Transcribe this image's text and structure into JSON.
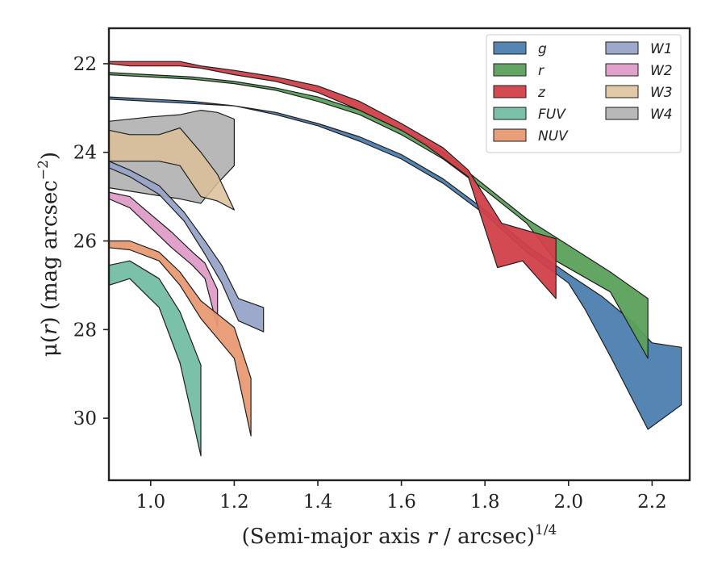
{
  "chart_data": {
    "type": "area",
    "xlabel": "(Semi-major axis r / arcsec)^1/4",
    "xlabel_parts": {
      "pre": "(Semi-major axis ",
      "var": "r",
      "mid": " / arcsec)",
      "sup": "1/4"
    },
    "ylabel": "μ(r) (mag arcsec⁻²)",
    "ylabel_parts": {
      "pre": "μ(",
      "var": "r",
      "mid": ") (mag arcsec",
      "sup": "−2",
      "post": ")"
    },
    "xlim": [
      0.9,
      2.29
    ],
    "ylim": [
      31.4,
      21.2
    ],
    "y_inverted": true,
    "xticks": [
      1.0,
      1.2,
      1.4,
      1.6,
      1.8,
      2.0,
      2.2
    ],
    "xtick_labels": [
      "1.0",
      "1.2",
      "1.4",
      "1.6",
      "1.8",
      "2.0",
      "2.2"
    ],
    "yticks": [
      22,
      24,
      26,
      28,
      30
    ],
    "ytick_labels": [
      "22",
      "24",
      "26",
      "28",
      "30"
    ],
    "grid": false,
    "legend": {
      "position": "top-right",
      "columns": 2
    },
    "series": [
      {
        "name": "W4",
        "color": "#ababab",
        "alpha": 0.85,
        "upper": [
          [
            0.9,
            23.3
          ],
          [
            1.0,
            23.2
          ],
          [
            1.07,
            23.15
          ],
          [
            1.12,
            23.05
          ],
          [
            1.16,
            23.1
          ],
          [
            1.2,
            23.25
          ]
        ],
        "lower": [
          [
            0.9,
            24.8
          ],
          [
            1.0,
            24.95
          ],
          [
            1.07,
            25.05
          ],
          [
            1.12,
            25.15
          ],
          [
            1.16,
            24.7
          ],
          [
            1.2,
            24.3
          ]
        ]
      },
      {
        "name": "W3",
        "color": "#dcbf98",
        "alpha": 0.85,
        "upper": [
          [
            0.9,
            23.5
          ],
          [
            0.95,
            23.6
          ],
          [
            1.02,
            23.6
          ],
          [
            1.07,
            23.45
          ],
          [
            1.12,
            24.0
          ],
          [
            1.16,
            24.5
          ],
          [
            1.2,
            25.3
          ]
        ],
        "lower": [
          [
            0.9,
            24.2
          ],
          [
            0.95,
            24.2
          ],
          [
            1.02,
            24.2
          ],
          [
            1.07,
            24.3
          ],
          [
            1.12,
            25.0
          ],
          [
            1.16,
            25.1
          ],
          [
            1.2,
            25.3
          ]
        ]
      },
      {
        "name": "W1",
        "color": "#97a4c8",
        "alpha": 0.95,
        "upper": [
          [
            0.9,
            24.2
          ],
          [
            0.95,
            24.4
          ],
          [
            1.02,
            24.75
          ],
          [
            1.08,
            25.35
          ],
          [
            1.13,
            26.0
          ],
          [
            1.17,
            26.55
          ],
          [
            1.21,
            27.3
          ],
          [
            1.27,
            27.5
          ]
        ],
        "lower": [
          [
            0.9,
            24.35
          ],
          [
            0.95,
            24.55
          ],
          [
            1.02,
            24.95
          ],
          [
            1.08,
            25.55
          ],
          [
            1.13,
            26.3
          ],
          [
            1.17,
            26.95
          ],
          [
            1.21,
            27.8
          ],
          [
            1.27,
            28.05
          ]
        ]
      },
      {
        "name": "W2",
        "color": "#de9cc8",
        "alpha": 0.95,
        "upper": [
          [
            0.9,
            24.9
          ],
          [
            0.95,
            25.0
          ],
          [
            1.0,
            25.4
          ],
          [
            1.05,
            25.8
          ],
          [
            1.1,
            26.25
          ],
          [
            1.13,
            26.5
          ],
          [
            1.16,
            27.1
          ]
        ],
        "lower": [
          [
            0.9,
            25.05
          ],
          [
            0.95,
            25.25
          ],
          [
            1.0,
            25.7
          ],
          [
            1.05,
            26.15
          ],
          [
            1.1,
            26.55
          ],
          [
            1.13,
            26.85
          ],
          [
            1.16,
            27.95
          ]
        ]
      },
      {
        "name": "NUV",
        "color": "#e89a72",
        "alpha": 0.95,
        "upper": [
          [
            0.9,
            26.0
          ],
          [
            0.95,
            26.0
          ],
          [
            1.02,
            26.25
          ],
          [
            1.07,
            26.7
          ],
          [
            1.12,
            27.35
          ],
          [
            1.2,
            27.95
          ],
          [
            1.24,
            29.1
          ]
        ],
        "lower": [
          [
            0.9,
            26.15
          ],
          [
            0.95,
            26.2
          ],
          [
            1.02,
            26.45
          ],
          [
            1.07,
            27.0
          ],
          [
            1.12,
            27.75
          ],
          [
            1.2,
            28.65
          ],
          [
            1.24,
            30.4
          ]
        ]
      },
      {
        "name": "FUV",
        "color": "#74bda3",
        "alpha": 0.95,
        "upper": [
          [
            0.9,
            26.55
          ],
          [
            0.95,
            26.45
          ],
          [
            1.02,
            26.85
          ],
          [
            1.07,
            27.6
          ],
          [
            1.12,
            28.8
          ]
        ],
        "lower": [
          [
            0.9,
            27.0
          ],
          [
            0.95,
            26.85
          ],
          [
            1.02,
            27.5
          ],
          [
            1.07,
            28.75
          ],
          [
            1.12,
            30.85
          ]
        ]
      },
      {
        "name": "g",
        "color": "#4c7eaf",
        "alpha": 0.95,
        "upper": [
          [
            0.9,
            22.75
          ],
          [
            1.0,
            22.8
          ],
          [
            1.1,
            22.85
          ],
          [
            1.2,
            22.95
          ],
          [
            1.3,
            23.1
          ],
          [
            1.4,
            23.35
          ],
          [
            1.5,
            23.65
          ],
          [
            1.6,
            24.05
          ],
          [
            1.7,
            24.6
          ],
          [
            1.8,
            25.3
          ],
          [
            1.9,
            26.1
          ],
          [
            2.0,
            26.75
          ],
          [
            2.08,
            27.25
          ],
          [
            2.15,
            27.8
          ],
          [
            2.2,
            28.3
          ],
          [
            2.27,
            28.4
          ]
        ],
        "lower": [
          [
            0.9,
            22.8
          ],
          [
            1.0,
            22.85
          ],
          [
            1.1,
            22.9
          ],
          [
            1.2,
            22.95
          ],
          [
            1.3,
            23.15
          ],
          [
            1.4,
            23.4
          ],
          [
            1.5,
            23.75
          ],
          [
            1.6,
            24.15
          ],
          [
            1.7,
            24.7
          ],
          [
            1.8,
            25.4
          ],
          [
            1.9,
            26.25
          ],
          [
            2.0,
            26.95
          ],
          [
            2.04,
            27.55
          ],
          [
            2.1,
            28.6
          ],
          [
            2.19,
            30.25
          ],
          [
            2.27,
            29.7
          ]
        ]
      },
      {
        "name": "r",
        "color": "#5ba15b",
        "alpha": 0.95,
        "upper": [
          [
            0.9,
            22.2
          ],
          [
            1.0,
            22.25
          ],
          [
            1.1,
            22.3
          ],
          [
            1.2,
            22.4
          ],
          [
            1.3,
            22.55
          ],
          [
            1.4,
            22.75
          ],
          [
            1.5,
            23.05
          ],
          [
            1.6,
            23.5
          ],
          [
            1.7,
            24.0
          ],
          [
            1.8,
            24.75
          ],
          [
            1.9,
            25.5
          ],
          [
            2.0,
            26.1
          ],
          [
            2.1,
            26.7
          ],
          [
            2.19,
            27.3
          ]
        ],
        "lower": [
          [
            0.9,
            22.25
          ],
          [
            1.0,
            22.3
          ],
          [
            1.1,
            22.35
          ],
          [
            1.2,
            22.45
          ],
          [
            1.3,
            22.6
          ],
          [
            1.4,
            22.85
          ],
          [
            1.5,
            23.15
          ],
          [
            1.6,
            23.6
          ],
          [
            1.7,
            24.15
          ],
          [
            1.8,
            24.85
          ],
          [
            1.9,
            25.6
          ],
          [
            1.97,
            26.45
          ],
          [
            2.1,
            27.15
          ],
          [
            2.19,
            28.65
          ]
        ]
      },
      {
        "name": "z",
        "color": "#d2404a",
        "alpha": 0.95,
        "upper": [
          [
            0.9,
            21.95
          ],
          [
            0.95,
            21.95
          ],
          [
            1.02,
            21.95
          ],
          [
            1.07,
            21.95
          ],
          [
            1.12,
            22.05
          ],
          [
            1.2,
            22.15
          ],
          [
            1.3,
            22.3
          ],
          [
            1.4,
            22.5
          ],
          [
            1.5,
            22.85
          ],
          [
            1.6,
            23.35
          ],
          [
            1.7,
            23.9
          ],
          [
            1.76,
            24.4
          ],
          [
            1.84,
            25.6
          ],
          [
            1.97,
            25.95
          ]
        ],
        "lower": [
          [
            0.9,
            22.0
          ],
          [
            0.95,
            22.05
          ],
          [
            1.02,
            22.05
          ],
          [
            1.07,
            22.05
          ],
          [
            1.12,
            22.1
          ],
          [
            1.2,
            22.25
          ],
          [
            1.3,
            22.4
          ],
          [
            1.4,
            22.65
          ],
          [
            1.5,
            23.05
          ],
          [
            1.6,
            23.5
          ],
          [
            1.66,
            23.85
          ],
          [
            1.76,
            24.55
          ],
          [
            1.83,
            26.6
          ],
          [
            1.89,
            26.45
          ],
          [
            1.97,
            27.3
          ]
        ]
      }
    ],
    "legend_order": [
      "g",
      "r",
      "z",
      "FUV",
      "NUV",
      "W1",
      "W2",
      "W3",
      "W4"
    ]
  }
}
